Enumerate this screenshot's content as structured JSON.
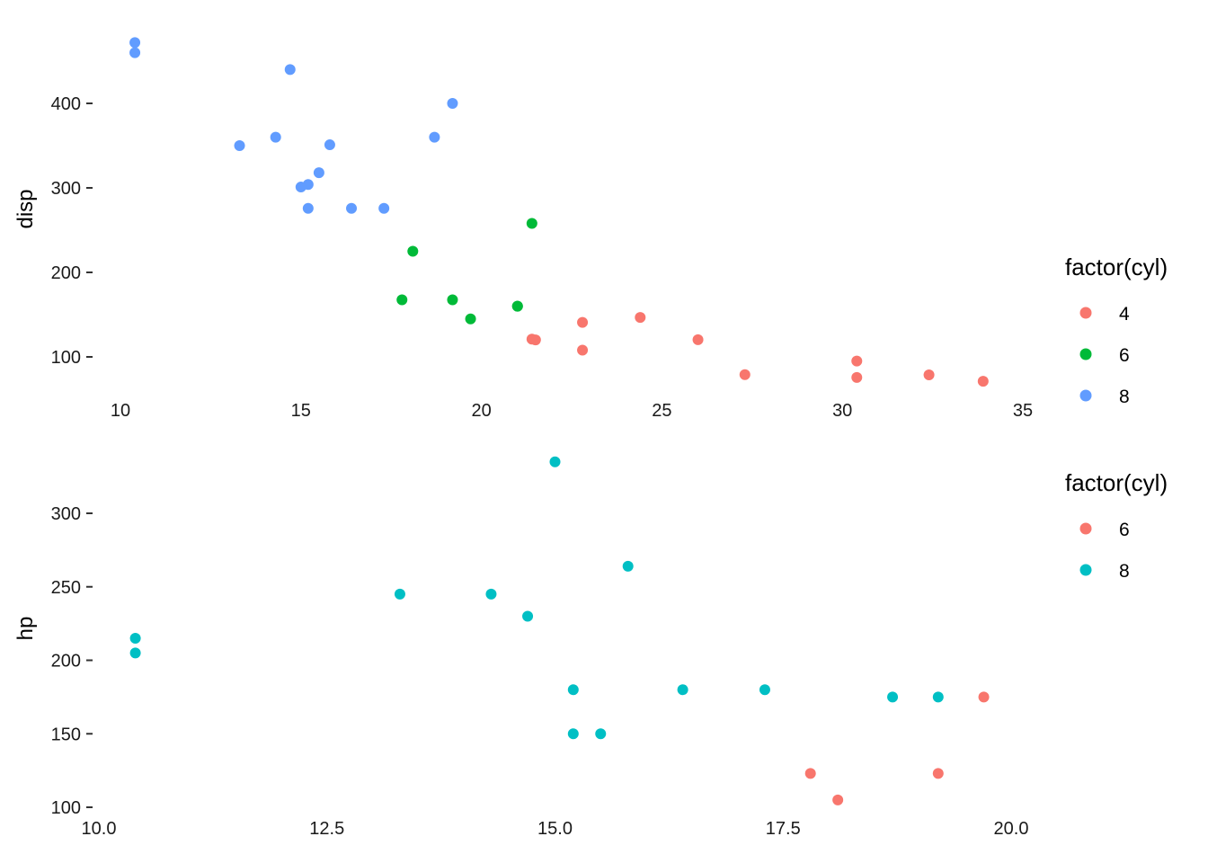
{
  "chart_data": [
    {
      "type": "scatter",
      "title": "",
      "xlabel": "",
      "ylabel": "disp",
      "xlim": [
        10.4,
        33.9
      ],
      "ylim": [
        71.1,
        472
      ],
      "x_ticks": [
        "10",
        "15",
        "20",
        "25",
        "30",
        "35"
      ],
      "x_tick_values": [
        10,
        15,
        20,
        25,
        30,
        35
      ],
      "y_ticks": [
        "100",
        "200",
        "300",
        "400"
      ],
      "y_tick_values": [
        100,
        200,
        300,
        400
      ],
      "grid": false,
      "legend": {
        "title": "factor(cyl)",
        "placement": "right",
        "entries": [
          {
            "label": "4",
            "color": "#F8766D"
          },
          {
            "label": "6",
            "color": "#00BA38"
          },
          {
            "label": "8",
            "color": "#619CFF"
          }
        ]
      },
      "series": [
        {
          "name": "4",
          "color": "#F8766D",
          "points": [
            [
              22.8,
              108
            ],
            [
              24.4,
              146.7
            ],
            [
              22.8,
              140.8
            ],
            [
              32.4,
              78.7
            ],
            [
              30.4,
              75.7
            ],
            [
              33.9,
              71.1
            ],
            [
              21.5,
              120.1
            ],
            [
              27.3,
              79
            ],
            [
              26,
              120.3
            ],
            [
              30.4,
              95.1
            ],
            [
              21.4,
              121
            ]
          ]
        },
        {
          "name": "6",
          "color": "#00BA38",
          "points": [
            [
              21,
              160
            ],
            [
              21,
              160
            ],
            [
              21.4,
              258
            ],
            [
              18.1,
              225
            ],
            [
              19.2,
              167.6
            ],
            [
              17.8,
              167.6
            ],
            [
              19.7,
              145
            ]
          ]
        },
        {
          "name": "8",
          "color": "#619CFF",
          "points": [
            [
              18.7,
              360
            ],
            [
              14.3,
              360
            ],
            [
              16.4,
              275.8
            ],
            [
              17.3,
              275.8
            ],
            [
              15.2,
              275.8
            ],
            [
              10.4,
              472
            ],
            [
              10.4,
              460
            ],
            [
              14.7,
              440
            ],
            [
              15.5,
              318
            ],
            [
              15.2,
              304
            ],
            [
              13.3,
              350
            ],
            [
              19.2,
              400
            ],
            [
              15.8,
              351
            ],
            [
              15,
              301
            ]
          ]
        }
      ]
    },
    {
      "type": "scatter",
      "title": "",
      "xlabel": "",
      "ylabel": "hp",
      "xlim": [
        10.4,
        19.7
      ],
      "ylim": [
        105,
        335
      ],
      "x_ticks": [
        "10.0",
        "12.5",
        "15.0",
        "17.5",
        "20.0"
      ],
      "x_tick_values": [
        10,
        12.5,
        15,
        17.5,
        20
      ],
      "y_ticks": [
        "100",
        "150",
        "200",
        "250",
        "300"
      ],
      "y_tick_values": [
        100,
        150,
        200,
        250,
        300
      ],
      "grid": false,
      "legend": {
        "title": "factor(cyl)",
        "placement": "right",
        "entries": [
          {
            "label": "6",
            "color": "#F8766D"
          },
          {
            "label": "8",
            "color": "#00BFC4"
          }
        ]
      },
      "series": [
        {
          "name": "6",
          "color": "#F8766D",
          "points": [
            [
              19.2,
              123
            ],
            [
              17.8,
              123
            ],
            [
              18.1,
              105
            ],
            [
              19.7,
              175
            ]
          ]
        },
        {
          "name": "8",
          "color": "#00BFC4",
          "points": [
            [
              18.7,
              175
            ],
            [
              14.3,
              245
            ],
            [
              16.4,
              180
            ],
            [
              17.3,
              180
            ],
            [
              15.2,
              180
            ],
            [
              10.4,
              205
            ],
            [
              10.4,
              215
            ],
            [
              14.7,
              230
            ],
            [
              15.5,
              150
            ],
            [
              15.2,
              150
            ],
            [
              13.3,
              245
            ],
            [
              19.2,
              175
            ],
            [
              15.8,
              264
            ],
            [
              15,
              335
            ]
          ]
        }
      ]
    }
  ]
}
